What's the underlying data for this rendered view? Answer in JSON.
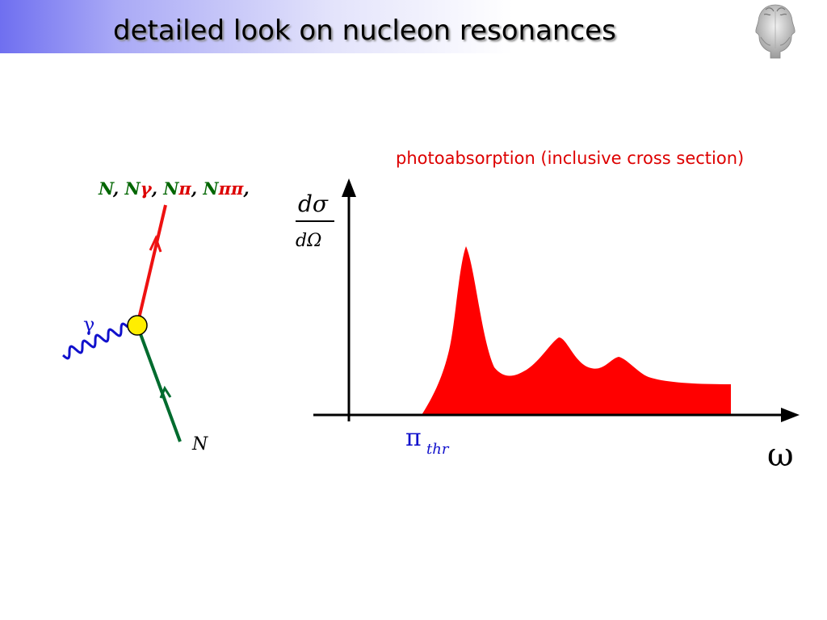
{
  "slide": {
    "title": "detailed look on nucleon resonances",
    "caption": "photoabsorption (inclusive cross section)"
  },
  "feynman": {
    "final_states": [
      {
        "text": "N",
        "color": "#006600"
      },
      {
        "text": ", ",
        "color": "#000000"
      },
      {
        "text": "N",
        "color": "#006600"
      },
      {
        "text": "γ",
        "color": "#dd0000"
      },
      {
        "text": ", ",
        "color": "#000000"
      },
      {
        "text": "N",
        "color": "#006600"
      },
      {
        "text": "π",
        "color": "#dd0000"
      },
      {
        "text": ", ",
        "color": "#000000"
      },
      {
        "text": "N",
        "color": "#006600"
      },
      {
        "text": "ππ",
        "color": "#dd0000"
      },
      {
        "text": ",",
        "color": "#000000"
      }
    ],
    "photon_label": "γ",
    "incoming_label": "N",
    "colors": {
      "outgoing": "#ee1111",
      "incoming": "#006b2e",
      "photon": "#1111cc",
      "vertex": "#ffee00"
    }
  },
  "plot": {
    "ylabel_numerator": "dσ",
    "ylabel_denominator": "dΩ",
    "xlabel": "ω",
    "threshold_symbol": "π",
    "threshold_subscript": "thr",
    "fill_color": "#ff0000",
    "threshold_color": "#1111cc"
  }
}
